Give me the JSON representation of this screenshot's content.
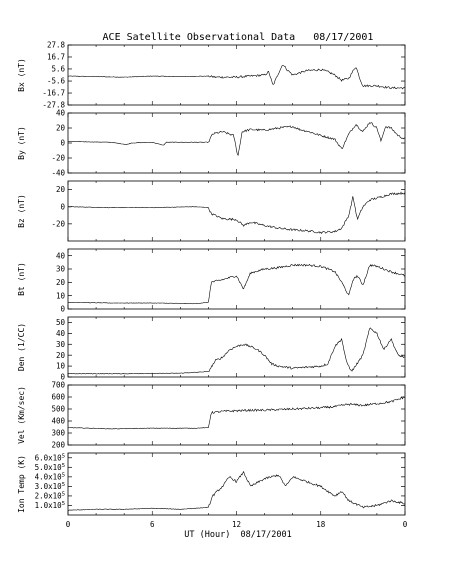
{
  "chart_data": {
    "type": "line",
    "title": "ACE Satellite Observational Data   08/17/2001",
    "xlabel": "UT (Hour)  08/17/2001",
    "x_ticks": [
      "0",
      "6",
      "12",
      "18",
      "0"
    ],
    "x_tick_values": [
      0,
      6,
      12,
      18,
      24
    ],
    "xlim": [
      0,
      24
    ],
    "panels": [
      {
        "name": "Bx",
        "ylabel": "Bx (nT)",
        "ylim": [
          -27.8,
          27.8
        ],
        "y_ticks": [
          {
            "v": 27.8,
            "label": "27.8"
          },
          {
            "v": 16.7,
            "label": "16.7"
          },
          {
            "v": 5.6,
            "label": "5.6"
          },
          {
            "v": -5.6,
            "label": "-5.6"
          },
          {
            "v": -16.7,
            "label": "-16.7"
          },
          {
            "v": -27.8,
            "label": "-27.8"
          }
        ],
        "series": [
          {
            "values": [
              [
                0,
                -1
              ],
              [
                2,
                -1.5
              ],
              [
                4,
                -2
              ],
              [
                6,
                -1
              ],
              [
                8,
                -1.5
              ],
              [
                10,
                -1
              ],
              [
                10.5,
                -2
              ],
              [
                12,
                -2
              ],
              [
                13,
                -1
              ],
              [
                14,
                0
              ],
              [
                14.3,
                3
              ],
              [
                14.6,
                -10
              ],
              [
                15,
                2
              ],
              [
                15.3,
                10
              ],
              [
                15.6,
                5
              ],
              [
                16,
                0
              ],
              [
                17,
                4
              ],
              [
                18,
                5
              ],
              [
                18.5,
                3
              ],
              [
                19,
                0
              ],
              [
                19.5,
                -5
              ],
              [
                20,
                -3
              ],
              [
                20.5,
                8
              ],
              [
                20.8,
                -4
              ],
              [
                21,
                -10
              ],
              [
                22,
                -10
              ],
              [
                23,
                -12
              ],
              [
                24,
                -12
              ]
            ]
          }
        ]
      },
      {
        "name": "By",
        "ylabel": "By (nT)",
        "ylim": [
          -40,
          40
        ],
        "y_ticks": [
          {
            "v": 40,
            "label": "40"
          },
          {
            "v": 20,
            "label": "20"
          },
          {
            "v": 0,
            "label": "0"
          },
          {
            "v": -20,
            "label": "-20"
          },
          {
            "v": -40,
            "label": "-40"
          }
        ],
        "series": [
          {
            "values": [
              [
                0,
                2
              ],
              [
                3,
                1
              ],
              [
                4.2,
                -2
              ],
              [
                4.5,
                0
              ],
              [
                6,
                1
              ],
              [
                6.8,
                -3
              ],
              [
                7,
                1
              ],
              [
                9,
                1
              ],
              [
                10,
                1
              ],
              [
                10.3,
                12
              ],
              [
                11,
                15
              ],
              [
                11.8,
                10
              ],
              [
                12.1,
                -18
              ],
              [
                12.4,
                15
              ],
              [
                13,
                18
              ],
              [
                14,
                17
              ],
              [
                15,
                20
              ],
              [
                16,
                22
              ],
              [
                16.5,
                18
              ],
              [
                17,
                16
              ],
              [
                18,
                10
              ],
              [
                19,
                5
              ],
              [
                19.5,
                -8
              ],
              [
                20,
                12
              ],
              [
                20.5,
                25
              ],
              [
                21,
                15
              ],
              [
                21.5,
                28
              ],
              [
                22,
                20
              ],
              [
                22.3,
                2
              ],
              [
                22.6,
                22
              ],
              [
                23,
                20
              ],
              [
                23.5,
                10
              ],
              [
                24,
                5
              ]
            ]
          }
        ]
      },
      {
        "name": "Bz",
        "ylabel": "Bz (nT)",
        "ylim": [
          -40,
          30
        ],
        "y_ticks": [
          {
            "v": 20,
            "label": "20"
          },
          {
            "v": 0,
            "label": "0"
          },
          {
            "v": -20,
            "label": "-20"
          }
        ],
        "series": [
          {
            "values": [
              [
                0,
                0
              ],
              [
                3,
                -1
              ],
              [
                6,
                -1
              ],
              [
                9,
                0
              ],
              [
                10,
                -1
              ],
              [
                10.2,
                -8
              ],
              [
                11,
                -14
              ],
              [
                12,
                -15
              ],
              [
                12.5,
                -22
              ],
              [
                13,
                -18
              ],
              [
                14,
                -22
              ],
              [
                15,
                -25
              ],
              [
                16,
                -27
              ],
              [
                17,
                -28
              ],
              [
                18,
                -30
              ],
              [
                19,
                -29
              ],
              [
                19.5,
                -25
              ],
              [
                20,
                -10
              ],
              [
                20.3,
                12
              ],
              [
                20.6,
                -15
              ],
              [
                21,
                0
              ],
              [
                21.5,
                8
              ],
              [
                22,
                10
              ],
              [
                23,
                15
              ],
              [
                24,
                16
              ]
            ]
          }
        ]
      },
      {
        "name": "Bt",
        "ylabel": "Bt (nT)",
        "ylim": [
          0,
          45
        ],
        "y_ticks": [
          {
            "v": 40,
            "label": "40"
          },
          {
            "v": 30,
            "label": "30"
          },
          {
            "v": 20,
            "label": "20"
          },
          {
            "v": 10,
            "label": "10"
          },
          {
            "v": 0,
            "label": "0"
          }
        ],
        "series": [
          {
            "values": [
              [
                0,
                5
              ],
              [
                3,
                4.5
              ],
              [
                6,
                4.5
              ],
              [
                9,
                4
              ],
              [
                10,
                5
              ],
              [
                10.2,
                20
              ],
              [
                11,
                22
              ],
              [
                12,
                25
              ],
              [
                12.5,
                15
              ],
              [
                13,
                27
              ],
              [
                14,
                30
              ],
              [
                15,
                31
              ],
              [
                16,
                33
              ],
              [
                17,
                33
              ],
              [
                18,
                32
              ],
              [
                18.5,
                30
              ],
              [
                19,
                28
              ],
              [
                19.5,
                20
              ],
              [
                20,
                10
              ],
              [
                20.3,
                22
              ],
              [
                20.6,
                25
              ],
              [
                21,
                18
              ],
              [
                21.5,
                33
              ],
              [
                22,
                32
              ],
              [
                23,
                28
              ],
              [
                24,
                25
              ]
            ]
          }
        ]
      },
      {
        "name": "Den",
        "ylabel": "Den (1/CC)",
        "ylim": [
          0,
          55
        ],
        "y_ticks": [
          {
            "v": 50,
            "label": "50"
          },
          {
            "v": 40,
            "label": "40"
          },
          {
            "v": 30,
            "label": "30"
          },
          {
            "v": 20,
            "label": "20"
          },
          {
            "v": 10,
            "label": "10"
          },
          {
            "v": 0,
            "label": "0"
          }
        ],
        "series": [
          {
            "values": [
              [
                0,
                3
              ],
              [
                4,
                3
              ],
              [
                8,
                3.5
              ],
              [
                10,
                5
              ],
              [
                10.5,
                15
              ],
              [
                11,
                18
              ],
              [
                11.5,
                25
              ],
              [
                12,
                28
              ],
              [
                12.5,
                30
              ],
              [
                13,
                28
              ],
              [
                13.5,
                25
              ],
              [
                14,
                20
              ],
              [
                14.5,
                12
              ],
              [
                15,
                10
              ],
              [
                16,
                8
              ],
              [
                17,
                9
              ],
              [
                18,
                10
              ],
              [
                18.5,
                12
              ],
              [
                19,
                28
              ],
              [
                19.5,
                35
              ],
              [
                19.8,
                15
              ],
              [
                20.2,
                5
              ],
              [
                21,
                20
              ],
              [
                21.5,
                45
              ],
              [
                22,
                40
              ],
              [
                22.5,
                25
              ],
              [
                23,
                35
              ],
              [
                23.5,
                20
              ],
              [
                24,
                18
              ]
            ]
          }
        ]
      },
      {
        "name": "Vel",
        "ylabel": "Vel (Km/sec)",
        "ylim": [
          200,
          700
        ],
        "y_ticks": [
          {
            "v": 700,
            "label": "700"
          },
          {
            "v": 600,
            "label": "600"
          },
          {
            "v": 500,
            "label": "500"
          },
          {
            "v": 400,
            "label": "400"
          },
          {
            "v": 300,
            "label": "300"
          },
          {
            "v": 200,
            "label": "200"
          }
        ],
        "series": [
          {
            "values": [
              [
                0,
                345
              ],
              [
                3,
                335
              ],
              [
                6,
                340
              ],
              [
                9,
                340
              ],
              [
                10,
                345
              ],
              [
                10.2,
                470
              ],
              [
                11,
                480
              ],
              [
                12,
                485
              ],
              [
                13,
                490
              ],
              [
                14,
                490
              ],
              [
                15,
                495
              ],
              [
                16,
                500
              ],
              [
                17,
                505
              ],
              [
                18,
                510
              ],
              [
                19,
                520
              ],
              [
                20,
                540
              ],
              [
                21,
                530
              ],
              [
                22,
                545
              ],
              [
                23,
                560
              ],
              [
                24,
                600
              ]
            ]
          }
        ]
      },
      {
        "name": "IonTemp",
        "ylabel": "Ion Temp (K)",
        "ylim": [
          0,
          650000
        ],
        "y_ticks": [
          {
            "v": 600000,
            "label": "6.0x10^5"
          },
          {
            "v": 500000,
            "label": "5.0x10^5"
          },
          {
            "v": 400000,
            "label": "4.0x10^5"
          },
          {
            "v": 300000,
            "label": "3.0x10^5"
          },
          {
            "v": 200000,
            "label": "2.0x10^5"
          },
          {
            "v": 100000,
            "label": "1.0x10^5"
          }
        ],
        "series": [
          {
            "values": [
              [
                0,
                50000
              ],
              [
                2,
                60000
              ],
              [
                4,
                60000
              ],
              [
                6,
                70000
              ],
              [
                8,
                60000
              ],
              [
                10,
                80000
              ],
              [
                10.3,
                200000
              ],
              [
                11,
                300000
              ],
              [
                11.5,
                400000
              ],
              [
                12,
                350000
              ],
              [
                12.5,
                450000
              ],
              [
                13,
                300000
              ],
              [
                14,
                380000
              ],
              [
                15,
                420000
              ],
              [
                15.5,
                300000
              ],
              [
                16,
                400000
              ],
              [
                17,
                350000
              ],
              [
                18,
                300000
              ],
              [
                19,
                200000
              ],
              [
                19.5,
                250000
              ],
              [
                20,
                150000
              ],
              [
                21,
                80000
              ],
              [
                22,
                100000
              ],
              [
                23,
                150000
              ],
              [
                24,
                120000
              ]
            ]
          }
        ]
      }
    ]
  }
}
